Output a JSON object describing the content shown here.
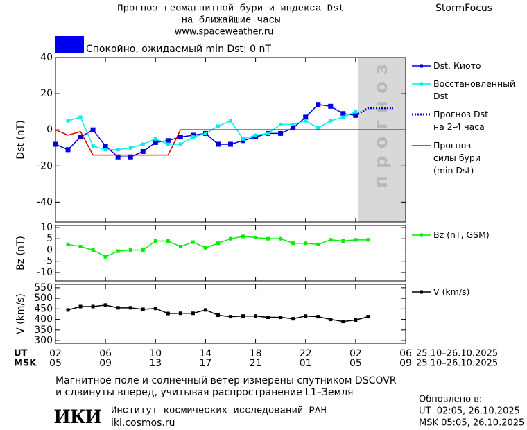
{
  "page": {
    "brand": "StormFocus",
    "subtitle": "на ближайшие часы",
    "source": "www.spaceweather.ru",
    "status": "Спокойно, ожидаемый min Dst: 0 nT",
    "status_color": "#0000ee",
    "forecast_label": "прогноз",
    "forecast_span": [
      24.2,
      28
    ],
    "ut_label": "UT",
    "msk_label": "MSK",
    "date_range": "25.10–26.10.2025",
    "note": [
      "Магнитное поле и солнечный ветер измерены спутником DSCOVR",
      "и сдвинуты вперед, учитывая распространение L1–Земля"
    ],
    "logo": "ИКИ",
    "institute": "Институт космических исследований РАН",
    "site": "iki.cosmos.ru",
    "updated": [
      "Обновлено в:",
      "UT  02:05, 26.10.2025",
      "MSK 05:05, 26.10.2025"
    ]
  },
  "chart_data": [
    {
      "type": "line",
      "title": "Прогноз геомагнитной бури и индекса Dst",
      "y_label": "Dst (nT)",
      "xlim": [
        0,
        28
      ],
      "ylim": [
        -51,
        40
      ],
      "yticks": [
        -40,
        -20,
        0,
        20,
        40
      ],
      "series": [
        {
          "name": "Dst, Киото",
          "color": "#0000dd",
          "marker": "square",
          "x": [
            0,
            1,
            2,
            3,
            4,
            5,
            6,
            7,
            8,
            9,
            10,
            11,
            12,
            13,
            14,
            15,
            16,
            17,
            18,
            19,
            20,
            21,
            22,
            23,
            24
          ],
          "values": [
            -8,
            -11,
            -4,
            0,
            -9,
            -15,
            -15,
            -12,
            -7,
            -6,
            -4,
            -3,
            -2,
            -8,
            -8,
            -6,
            -4,
            -2,
            -2,
            1,
            7,
            14,
            13,
            9,
            8
          ]
        },
        {
          "name": "Восстановленный\nDst",
          "color": "#00eeee",
          "marker": "square",
          "x": [
            1,
            2,
            3,
            4,
            5,
            6,
            7,
            8,
            9,
            10,
            11,
            12,
            13,
            14,
            15,
            16,
            17,
            18,
            19,
            20,
            21,
            22,
            23,
            24
          ],
          "values": [
            5,
            7,
            -9,
            -11,
            -11,
            -10,
            -8,
            -5,
            -8,
            -8,
            -4,
            -2,
            2,
            5,
            -5,
            -3,
            -2,
            3,
            3,
            5,
            1,
            5,
            7,
            10
          ]
        },
        {
          "name": "Прогноз Dst\nна 2-4 часа",
          "color": "#0000dd",
          "dash": "dotted",
          "x": [
            24,
            25,
            26,
            27
          ],
          "values": [
            8,
            12,
            12,
            12
          ]
        },
        {
          "name": "Прогноз\nсилы бури\n(min Dst)",
          "color": "#dd0000",
          "x": [
            0,
            1,
            2,
            3,
            9,
            10,
            28
          ],
          "values": [
            0,
            -3,
            -1,
            -14,
            -14,
            0,
            0
          ]
        }
      ]
    },
    {
      "type": "line",
      "y_label": "Bz (nT)",
      "xlim": [
        0,
        28
      ],
      "ylim": [
        -13.7,
        10.9
      ],
      "yticks": [
        -10,
        -5,
        0,
        5,
        10
      ],
      "series": [
        {
          "name": "Bz (nT, GSM)",
          "color": "#00ee00",
          "marker": "square",
          "x": [
            1,
            2,
            3,
            4,
            5,
            6,
            7,
            8,
            9,
            10,
            11,
            12,
            13,
            14,
            15,
            16,
            17,
            18,
            19,
            20,
            21,
            22,
            23,
            24,
            25
          ],
          "values": [
            2.5,
            1.5,
            0,
            -3,
            -0.5,
            0,
            0,
            4,
            4,
            1.5,
            3.5,
            1,
            3,
            5,
            6,
            5.5,
            5,
            5,
            3,
            3,
            2.5,
            4.5,
            4,
            4.5,
            4.5
          ]
        }
      ]
    },
    {
      "type": "line",
      "y_label": "V (km/s)",
      "xlim": [
        0,
        28
      ],
      "ylim": [
        287,
        566
      ],
      "yticks": [
        300,
        350,
        400,
        450,
        500,
        550
      ],
      "xticks": [
        {
          "value": 0,
          "label": "02"
        },
        {
          "value": 4,
          "label": "06"
        },
        {
          "value": 8,
          "label": "10"
        },
        {
          "value": 12,
          "label": "14"
        },
        {
          "value": 16,
          "label": "18"
        },
        {
          "value": 20,
          "label": "22"
        },
        {
          "value": 24,
          "label": "02"
        },
        {
          "value": 28,
          "label": "06"
        }
      ],
      "xtick_labels_msk": [
        "05",
        "09",
        "13",
        "17",
        "21",
        "01",
        "05",
        "09"
      ],
      "series": [
        {
          "name": "V (km/s)",
          "color": "#000000",
          "marker": "square",
          "x": [
            1,
            2,
            3,
            4,
            5,
            6,
            7,
            8,
            9,
            10,
            11,
            12,
            13,
            14,
            15,
            16,
            17,
            18,
            19,
            20,
            21,
            22,
            23,
            24,
            25
          ],
          "values": [
            445,
            461,
            461,
            468,
            455,
            455,
            448,
            452,
            428,
            429,
            429,
            445,
            420,
            413,
            416,
            416,
            410,
            410,
            403,
            416,
            413,
            400,
            390,
            397,
            413
          ]
        }
      ]
    }
  ]
}
